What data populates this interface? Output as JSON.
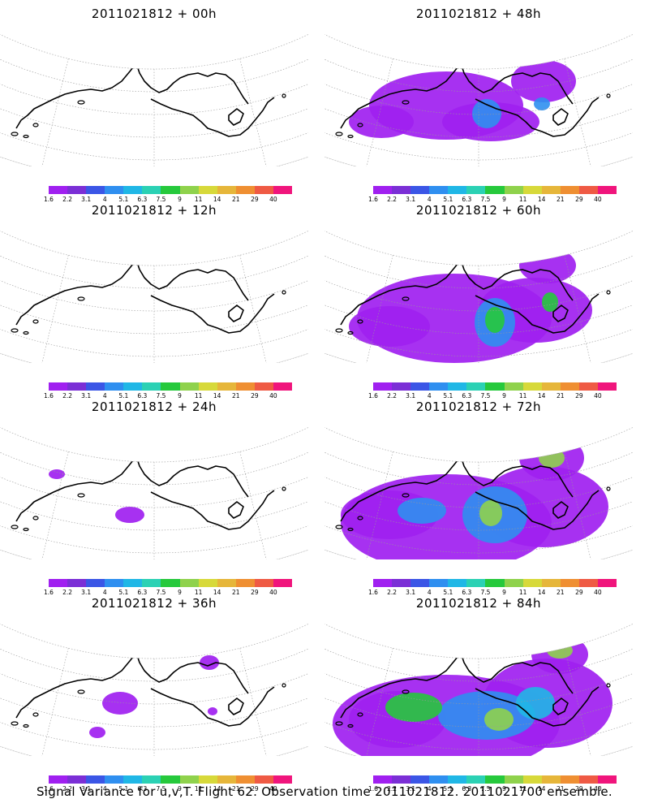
{
  "panels": [
    {
      "title": "2011021812 + 00h",
      "level": 0
    },
    {
      "title": "2011021812 + 48h",
      "level": 4
    },
    {
      "title": "2011021812 + 12h",
      "level": 0
    },
    {
      "title": "2011021812 + 60h",
      "level": 5
    },
    {
      "title": "2011021812 + 24h",
      "level": 1
    },
    {
      "title": "2011021812 + 72h",
      "level": 6
    },
    {
      "title": "2011021812 + 36h",
      "level": 2
    },
    {
      "title": "2011021812 + 84h",
      "level": 7
    }
  ],
  "colorbar": {
    "labels": [
      "1.6",
      "2.2",
      "3.1",
      "4",
      "5.1",
      "6.3",
      "7.5",
      "9",
      "11",
      "14",
      "21",
      "29",
      "40"
    ],
    "colors": [
      "#a020f0",
      "#7b2fd6",
      "#3b56e6",
      "#2f8ff0",
      "#20b7e6",
      "#2bd1b4",
      "#26c93c",
      "#8fd24c",
      "#d7d93a",
      "#e6b63a",
      "#ef8f32",
      "#ef5a44",
      "#f0157c"
    ]
  },
  "caption": "Signal Variance for u,v,T. Flight 62. Observation time 2011021812. 2011021700 ensemble."
}
